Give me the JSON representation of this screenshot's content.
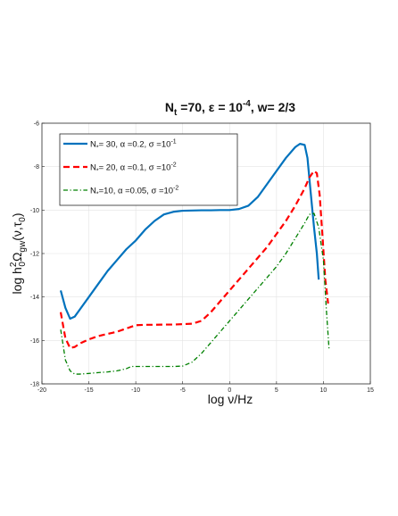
{
  "chart_data": {
    "type": "line",
    "title": {
      "base1": "N",
      "sub1": "t",
      "mid1": " =70, ε  = 10",
      "sup1": "-4",
      "mid2": ", w= 2/3"
    },
    "xlabel": "log ν/Hz",
    "ylabel": {
      "p1": "log h",
      "sup1": "2",
      "sub1": "0",
      "p2": "Ω",
      "sub2": "gw",
      "p3": "(ν,τ",
      "sub3": "0",
      "p4": ")"
    },
    "xlim": [
      -20,
      15
    ],
    "ylim": [
      -18,
      -6
    ],
    "xticks": [
      "-20",
      "-15",
      "-10",
      "-5",
      "0",
      "5",
      "10",
      "15"
    ],
    "yticks": [
      "-6",
      "-8",
      "-10",
      "-12",
      "-14",
      "-16",
      "-18"
    ],
    "grid": true,
    "legend_position": "top-left",
    "series": [
      {
        "color": "#0072BD",
        "dash": "solid",
        "legend": {
          "pre": "N",
          "sub": "*",
          "mid": "= 30, α =0.2, σ =10",
          "sup": "-1"
        },
        "x": [
          -18,
          -17.5,
          -17,
          -16.5,
          -16,
          -15,
          -14,
          -13,
          -12,
          -11,
          -10,
          -9,
          -8,
          -7,
          -6,
          -5,
          -4,
          -3,
          -2,
          -1,
          0,
          1,
          2,
          3,
          4,
          5,
          6,
          7,
          7.5,
          8,
          8.3,
          8.6,
          9,
          9.3,
          9.5
        ],
        "y": [
          -13.7,
          -14.5,
          -15.0,
          -14.9,
          -14.6,
          -14.0,
          -13.4,
          -12.8,
          -12.3,
          -11.8,
          -11.4,
          -10.9,
          -10.5,
          -10.2,
          -10.08,
          -10.03,
          -10.02,
          -10.01,
          -10.01,
          -10.0,
          -10.0,
          -9.95,
          -9.8,
          -9.4,
          -8.8,
          -8.2,
          -7.6,
          -7.1,
          -6.95,
          -7.0,
          -7.6,
          -9.0,
          -10.8,
          -12.0,
          -13.2
        ]
      },
      {
        "color": "#FF0000",
        "dash": "dashed",
        "legend": {
          "pre": "N",
          "sub": "*",
          "mid": "= 20, α =0.1, σ =10",
          "sup": "-2"
        },
        "x": [
          -18,
          -17.5,
          -17,
          -16.5,
          -16,
          -15,
          -14,
          -13,
          -12,
          -11,
          -10,
          -9,
          -8,
          -7,
          -6,
          -5,
          -4,
          -3,
          -2,
          -1,
          0,
          1,
          2,
          3,
          4,
          5,
          6,
          7,
          8,
          8.5,
          9,
          9.3,
          9.6,
          9.9,
          10.2,
          10.5
        ],
        "y": [
          -14.7,
          -15.9,
          -16.35,
          -16.3,
          -16.15,
          -15.95,
          -15.8,
          -15.7,
          -15.6,
          -15.45,
          -15.3,
          -15.28,
          -15.28,
          -15.27,
          -15.27,
          -15.25,
          -15.23,
          -15.1,
          -14.7,
          -14.2,
          -13.7,
          -13.2,
          -12.7,
          -12.2,
          -11.7,
          -11.1,
          -10.5,
          -9.8,
          -9.0,
          -8.5,
          -8.2,
          -8.3,
          -9.3,
          -11.2,
          -13.2,
          -14.3
        ]
      },
      {
        "color": "#008000",
        "dash": "dashdot",
        "legend": {
          "pre": "N",
          "sub": "*",
          "mid": "=10, α =0.05, σ =10",
          "sup": "-2"
        },
        "x": [
          -18,
          -17.5,
          -17,
          -16.5,
          -16,
          -15,
          -14,
          -13,
          -12,
          -11,
          -10.5,
          -10,
          -9,
          -8,
          -7,
          -6,
          -5,
          -4,
          -3,
          -2,
          -1,
          0,
          1,
          2,
          3,
          4,
          5,
          6,
          7,
          8,
          8.5,
          9,
          9.5,
          10,
          10.3,
          10.6
        ],
        "y": [
          -15.5,
          -16.9,
          -17.4,
          -17.55,
          -17.55,
          -17.52,
          -17.48,
          -17.45,
          -17.4,
          -17.3,
          -17.2,
          -17.2,
          -17.2,
          -17.2,
          -17.2,
          -17.2,
          -17.18,
          -17.0,
          -16.6,
          -16.1,
          -15.6,
          -15.1,
          -14.6,
          -14.1,
          -13.6,
          -13.1,
          -12.6,
          -12.0,
          -11.3,
          -10.6,
          -10.2,
          -10.15,
          -10.8,
          -12.3,
          -14.5,
          -16.4
        ]
      }
    ]
  }
}
